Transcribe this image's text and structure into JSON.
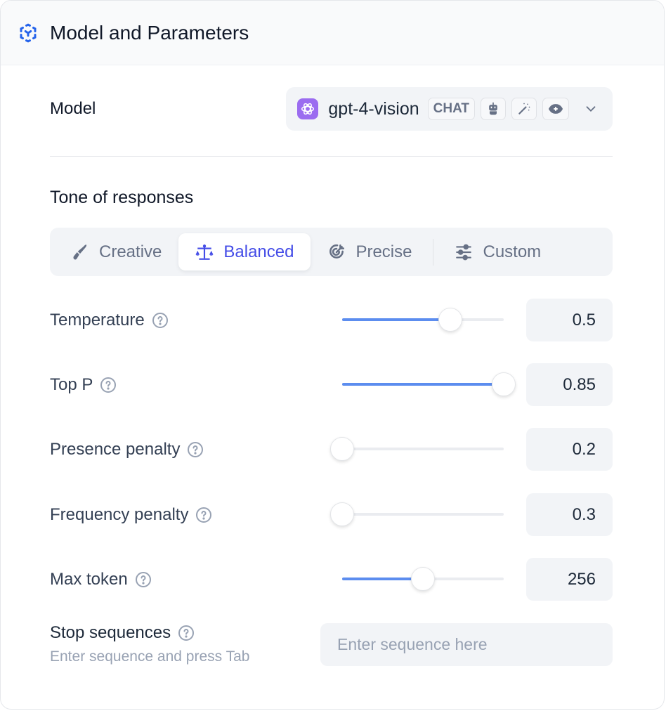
{
  "header": {
    "title": "Model and Parameters",
    "icon": "model-cube-icon",
    "accent": "#2563eb"
  },
  "model": {
    "label": "Model",
    "name": "gpt-4-vision",
    "badge": "CHAT",
    "features": [
      "robot-icon",
      "magic-wand-icon",
      "eye-icon"
    ],
    "brand_color": "#9b6cf0"
  },
  "tone": {
    "label": "Tone of responses",
    "tabs": [
      {
        "label": "Creative",
        "icon": "brush-icon"
      },
      {
        "label": "Balanced",
        "icon": "scale-icon",
        "active": true
      },
      {
        "label": "Precise",
        "icon": "target-icon"
      },
      {
        "label": "Custom",
        "icon": "sliders-icon"
      }
    ],
    "active_color": "#444ce7"
  },
  "params": [
    {
      "label": "Temperature",
      "value": "0.5",
      "slider_fraction": 0.67
    },
    {
      "label": "Top P",
      "value": "0.85",
      "slider_fraction": 1.0
    },
    {
      "label": "Presence penalty",
      "value": "0.2",
      "slider_fraction": 0
    },
    {
      "label": "Frequency penalty",
      "value": "0.3",
      "slider_fraction": 0
    },
    {
      "label": "Max token",
      "value": "256",
      "slider_fraction": 0.5
    }
  ],
  "stop": {
    "label": "Stop sequences",
    "hint": "Enter sequence and press Tab",
    "placeholder": "Enter sequence here"
  }
}
